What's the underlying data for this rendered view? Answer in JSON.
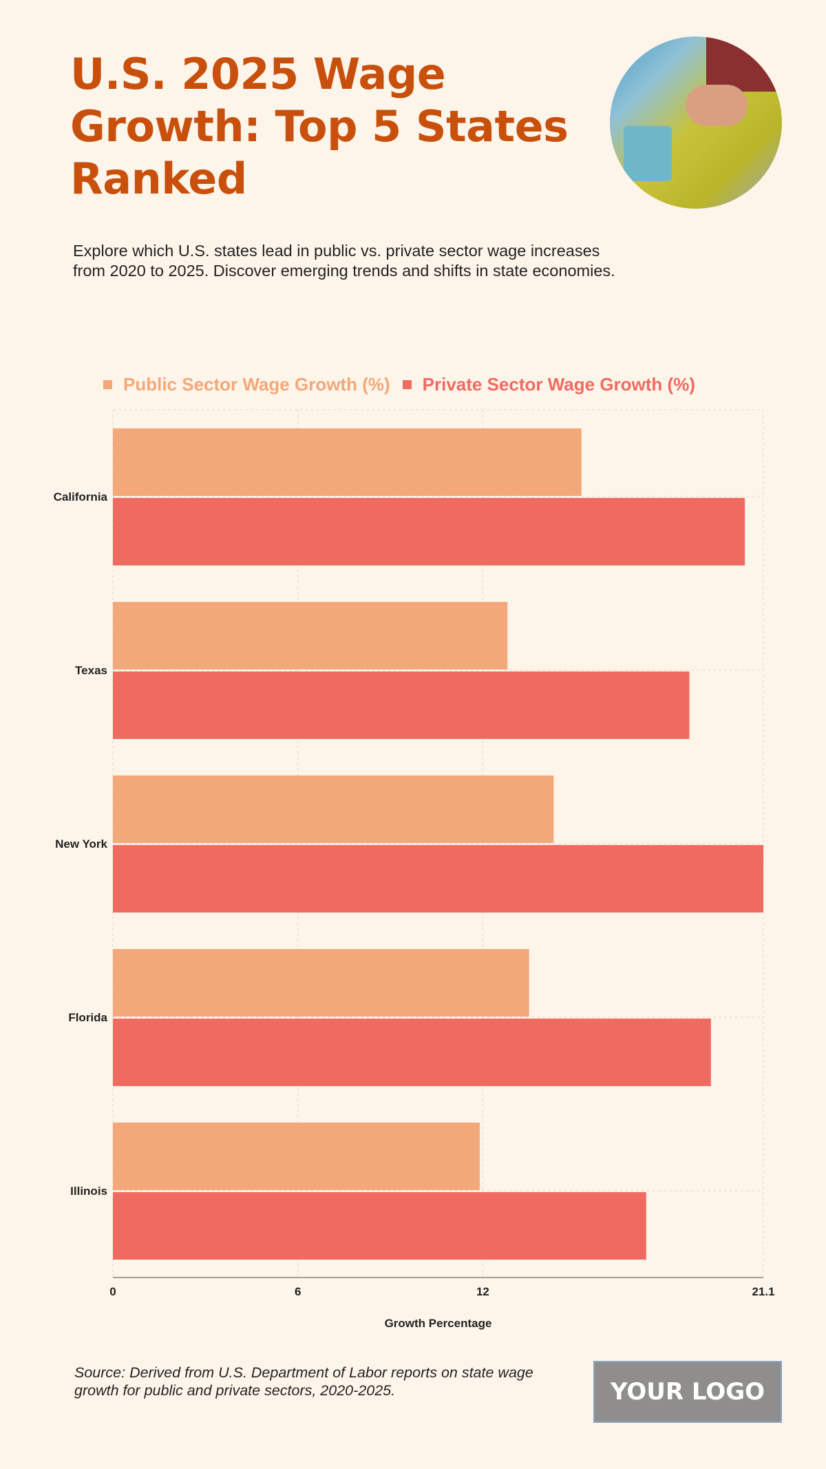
{
  "header": {
    "title": "U.S. 2025 Wage Growth: Top 5 States Ranked",
    "subtitle": "Explore which U.S. states lead in public vs. private sector wage increases from 2020 to 2025. Discover emerging trends and shifts in state economies."
  },
  "footer": {
    "source": "Source: Derived from U.S. Department of Labor reports on state wage growth for public and private sectors, 2020-2025.",
    "logo": "YOUR LOGO"
  },
  "colors": {
    "title": "#c8500c",
    "public": "#f2a878",
    "private": "#ef6b61",
    "background": "#fef5ea"
  },
  "chart_data": {
    "type": "bar",
    "orientation": "horizontal",
    "categories": [
      "California",
      "Texas",
      "New York",
      "Florida",
      "Illinois"
    ],
    "series": [
      {
        "name": "Public Sector Wage Growth (%)",
        "values": [
          15.2,
          12.8,
          14.3,
          13.5,
          11.9
        ]
      },
      {
        "name": "Private Sector Wage Growth (%)",
        "values": [
          20.5,
          18.7,
          21.1,
          19.4,
          17.3
        ]
      }
    ],
    "xlabel": "Growth Percentage",
    "ylabel": "",
    "xlim": [
      0,
      21.1
    ],
    "xticks": [
      "0",
      "6",
      "12",
      "21.1"
    ],
    "grid": true,
    "legend": "top"
  }
}
